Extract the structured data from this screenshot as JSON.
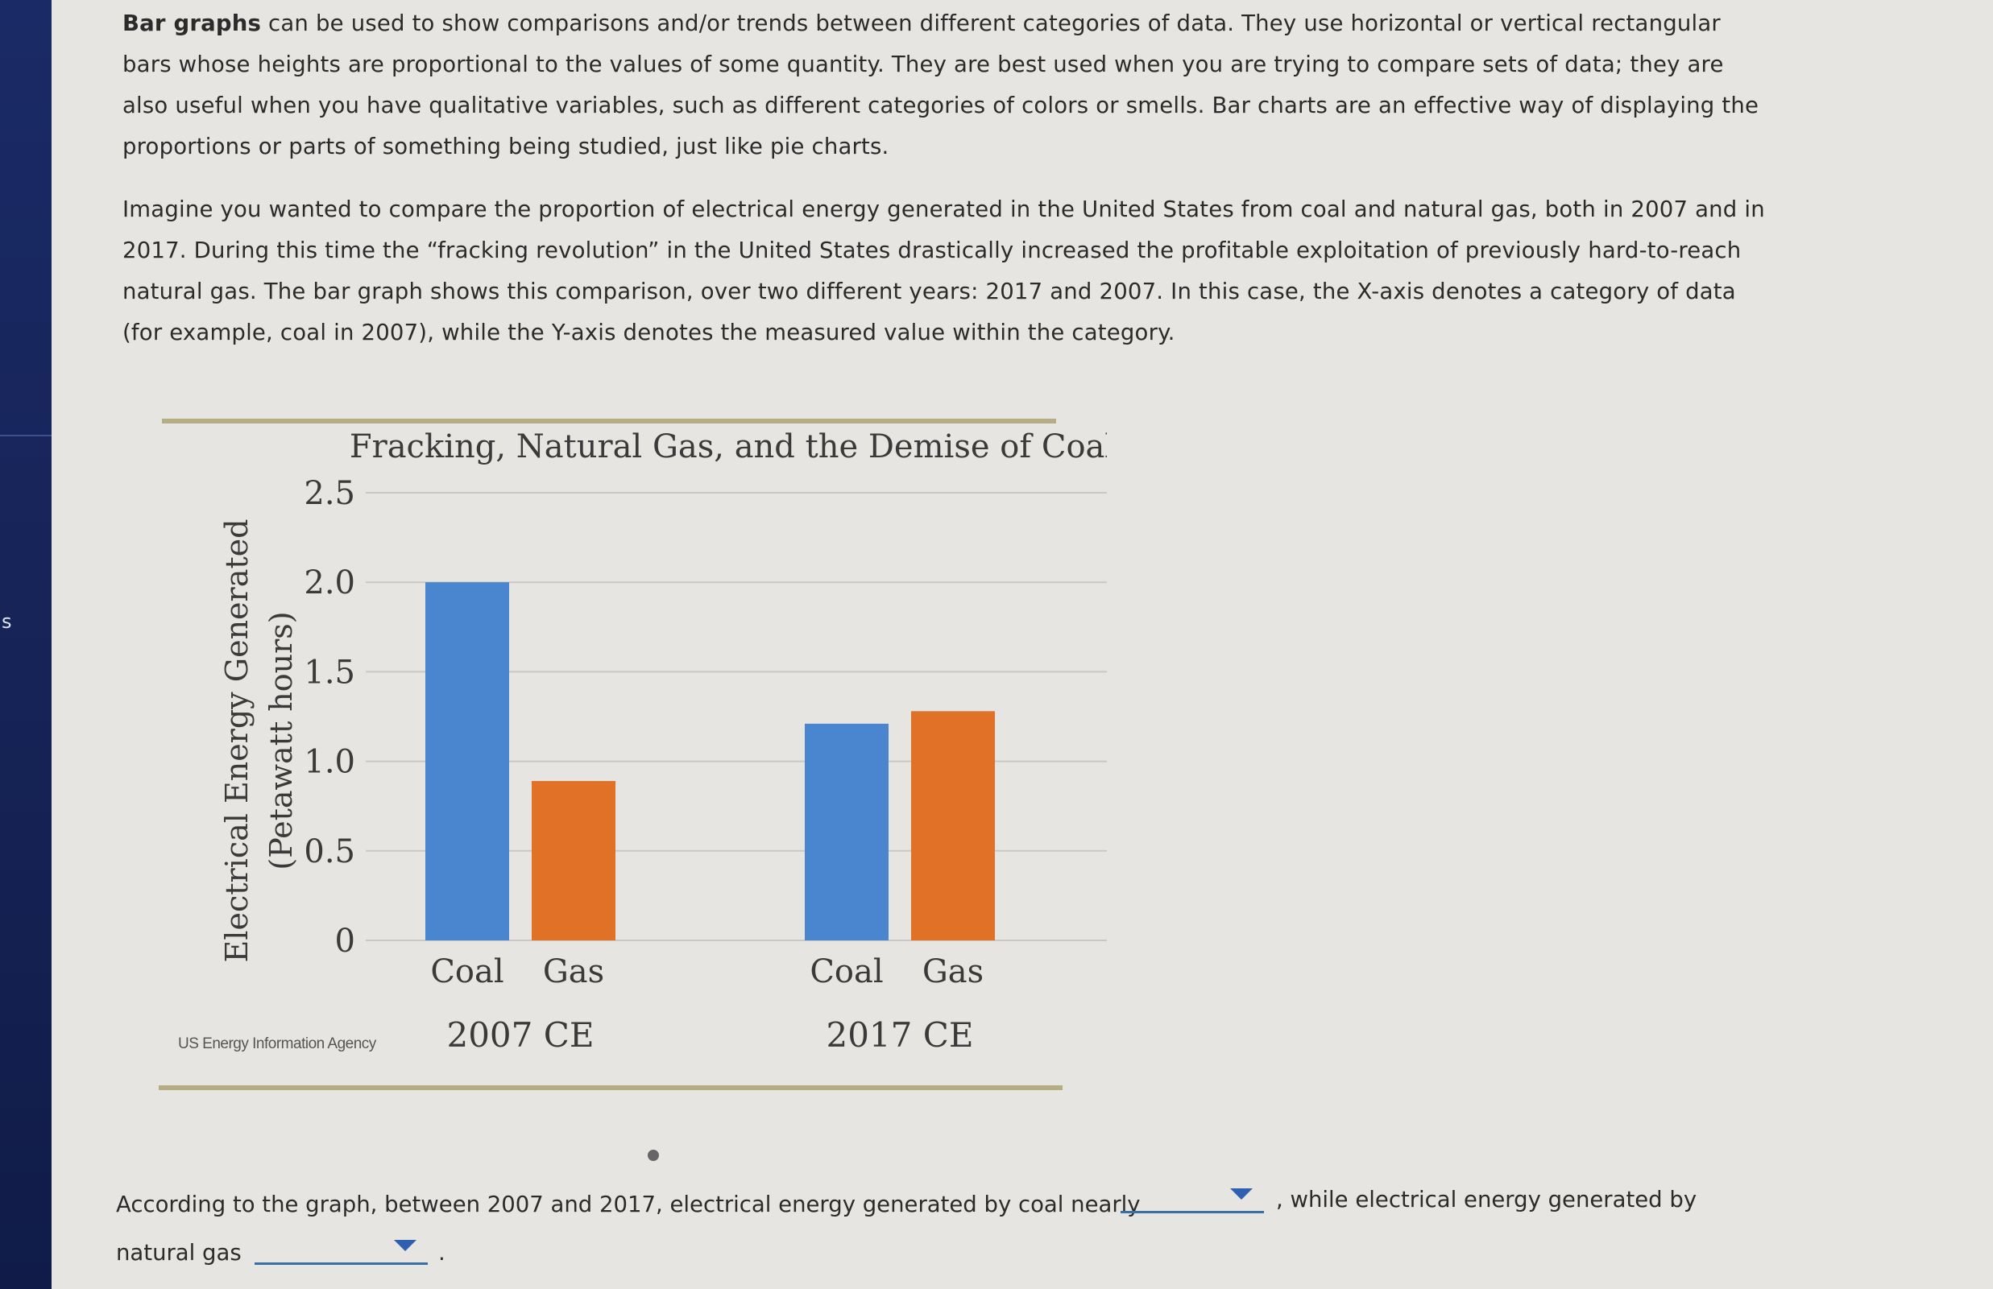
{
  "paragraph1": {
    "bold_lead": "Bar graphs",
    "text": " can be used to show comparisons and/or trends between different categories of data. They use horizontal or vertical rectangular bars whose heights are proportional to the values of some quantity. They are best used when you are trying to compare sets of data; they are also useful when you have qualitative variables, such as different categories of colors or smells. Bar charts are an effective way of displaying the proportions or parts of something being studied, just like pie charts."
  },
  "paragraph2": {
    "text": "Imagine you wanted to compare the proportion of electrical energy generated in the United States from coal and natural gas, both in 2007 and in 2017. During this time the “fracking revolution” in the United States drastically increased the profitable exploitation of previously hard-to-reach natural gas. The bar graph shows this comparison, over two different years: 2017 and 2007. In this case, the X-axis denotes a category of data (for example, coal in 2007), while the Y-axis denotes the measured value within the category."
  },
  "chart_data": {
    "type": "bar",
    "title": "Fracking, Natural Gas, and the Demise of Coal",
    "ylabel_line1": "Electrical Energy Generated",
    "ylabel_line2": "(Petawatt hours)",
    "ylim": [
      0,
      2.5
    ],
    "yticks": [
      "0",
      "0.5",
      "1.0",
      "1.5",
      "2.0",
      "2.5"
    ],
    "ytick_values": [
      0,
      0.5,
      1.0,
      1.5,
      2.0,
      2.5
    ],
    "grid": true,
    "groups": [
      "2007 CE",
      "2017 CE"
    ],
    "categories": [
      "Coal",
      "Gas"
    ],
    "series": [
      {
        "group": "2007 CE",
        "values": [
          2.0,
          0.89
        ]
      },
      {
        "group": "2017 CE",
        "values": [
          1.21,
          1.28
        ]
      }
    ],
    "colors": {
      "Coal": "#4a86cf",
      "Gas": "#e07127"
    },
    "source": "US Energy Information Agency"
  },
  "question": {
    "part1": "According to the graph, between 2007 and 2017, electrical energy generated by coal nearly",
    "part2": ", while electrical energy generated by",
    "part3": "natural gas",
    "part4": ".",
    "dropdown1_value": "",
    "dropdown2_value": ""
  }
}
